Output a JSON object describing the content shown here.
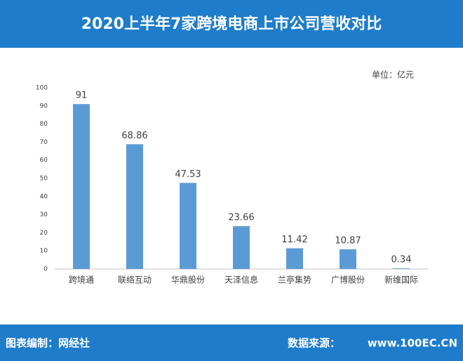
{
  "chart_data": {
    "type": "bar",
    "title": "2020上半年7家跨境电商上市公司营收对比",
    "unit": "单位：亿元",
    "categories": [
      "跨境通",
      "联络互动",
      "华鼎股份",
      "天泽信息",
      "兰亭集势",
      "广博股份",
      "新维国际"
    ],
    "values": [
      91,
      68.86,
      47.53,
      23.66,
      11.42,
      10.87,
      0.34
    ],
    "color": "#5b9bd5",
    "ylim": [
      0,
      100
    ],
    "yticks": [
      0,
      10,
      20,
      30,
      40,
      50,
      60,
      70,
      80,
      90,
      100
    ],
    "grid": false,
    "footer_left": "图表编制：网经社",
    "footer_right": "数据来源：",
    "watermark": "www.100EC.CN"
  }
}
